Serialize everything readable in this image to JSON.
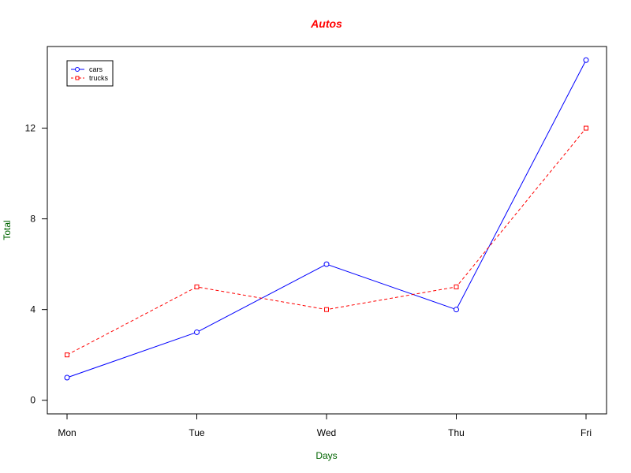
{
  "chart_data": {
    "type": "line",
    "title": "Autos",
    "xlabel": "Days",
    "ylabel": "Total",
    "categories": [
      "Mon",
      "Tue",
      "Wed",
      "Thu",
      "Fri"
    ],
    "series": [
      {
        "name": "cars",
        "values": [
          1,
          3,
          6,
          4,
          15
        ],
        "color": "#0000ff",
        "marker": "circle",
        "line_style": "solid"
      },
      {
        "name": "trucks",
        "values": [
          2,
          5,
          4,
          5,
          12
        ],
        "color": "#ff0000",
        "marker": "square",
        "line_style": "dashed"
      }
    ],
    "yticks": [
      0,
      4,
      8,
      12
    ],
    "ylim": [
      -0.6,
      15.6
    ],
    "grid": false,
    "legend_position": "top-left",
    "colors": {
      "title": "#ff0000",
      "axis_labels": "#006400",
      "axes": "#000000"
    }
  }
}
